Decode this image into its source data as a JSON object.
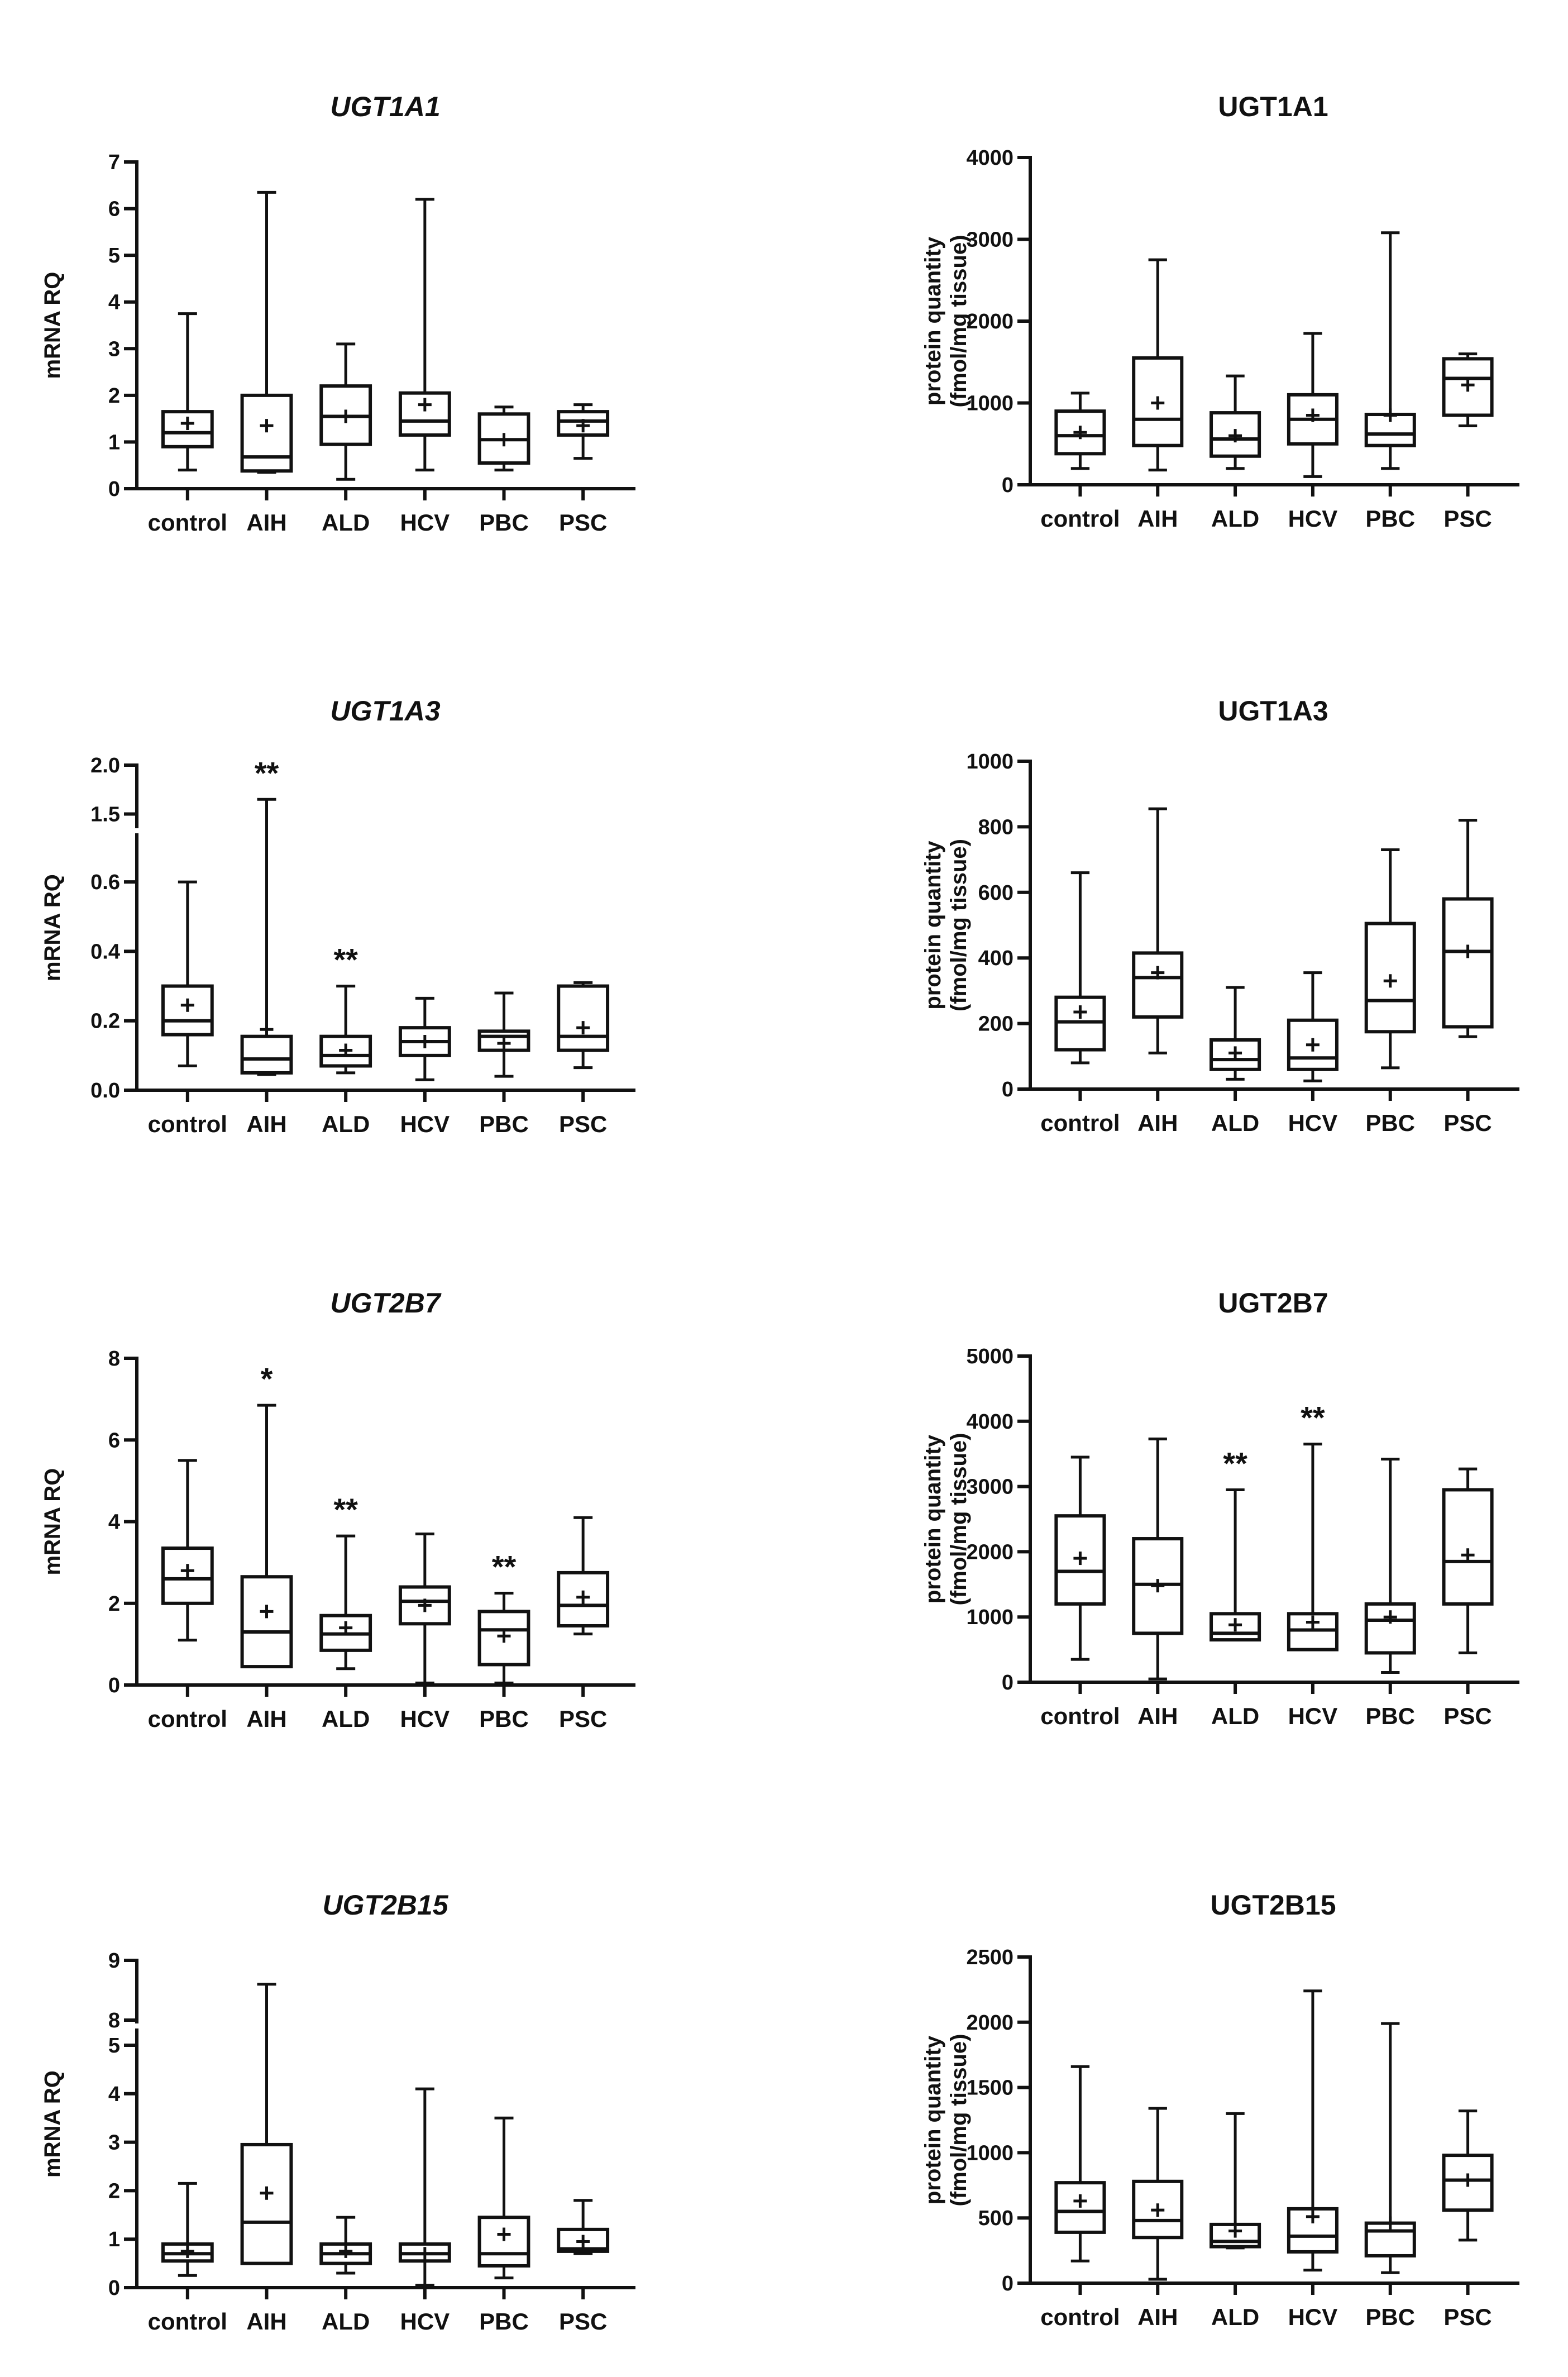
{
  "chart_data": [
    {
      "id": "mrna-ugt1a1",
      "type": "box",
      "title": "UGT1A1",
      "title_italic": true,
      "ylabel": [
        "mRNA RQ"
      ],
      "ylim": [
        0,
        7
      ],
      "yticks": [
        "0",
        "1",
        "2",
        "3",
        "4",
        "5",
        "6",
        "7"
      ],
      "categories": [
        "control",
        "AIH",
        "ALD",
        "HCV",
        "PBC",
        "PSC"
      ],
      "boxes": [
        {
          "min": 0.4,
          "q1": 0.9,
          "median": 1.2,
          "q3": 1.65,
          "max": 3.75,
          "mean": 1.4,
          "sig": ""
        },
        {
          "min": 0.35,
          "q1": 0.38,
          "median": 0.68,
          "q3": 2.0,
          "max": 6.35,
          "mean": 1.35,
          "sig": ""
        },
        {
          "min": 0.2,
          "q1": 0.95,
          "median": 1.55,
          "q3": 2.2,
          "max": 3.1,
          "mean": 1.55,
          "sig": ""
        },
        {
          "min": 0.4,
          "q1": 1.15,
          "median": 1.45,
          "q3": 2.05,
          "max": 6.2,
          "mean": 1.8,
          "sig": ""
        },
        {
          "min": 0.4,
          "q1": 0.55,
          "median": 1.05,
          "q3": 1.6,
          "max": 1.75,
          "mean": 1.05,
          "sig": ""
        },
        {
          "min": 0.65,
          "q1": 1.15,
          "median": 1.45,
          "q3": 1.65,
          "max": 1.8,
          "mean": 1.35,
          "sig": ""
        }
      ]
    },
    {
      "id": "protein-ugt1a1",
      "type": "box",
      "title": "UGT1A1",
      "title_italic": false,
      "ylabel": [
        "protein quantity",
        "(fmol/mg tissue)"
      ],
      "ylim": [
        0,
        4000
      ],
      "yticks": [
        "0",
        "1000",
        "2000",
        "3000",
        "4000"
      ],
      "categories": [
        "control",
        "AIH",
        "ALD",
        "HCV",
        "PBC",
        "PSC"
      ],
      "boxes": [
        {
          "min": 200,
          "q1": 380,
          "median": 600,
          "q3": 900,
          "max": 1120,
          "mean": 640,
          "sig": ""
        },
        {
          "min": 180,
          "q1": 480,
          "median": 800,
          "q3": 1550,
          "max": 2750,
          "mean": 1000,
          "sig": ""
        },
        {
          "min": 200,
          "q1": 350,
          "median": 560,
          "q3": 880,
          "max": 1330,
          "mean": 600,
          "sig": ""
        },
        {
          "min": 100,
          "q1": 500,
          "median": 800,
          "q3": 1100,
          "max": 1850,
          "mean": 850,
          "sig": ""
        },
        {
          "min": 200,
          "q1": 480,
          "median": 620,
          "q3": 860,
          "max": 3080,
          "mean": 850,
          "sig": ""
        },
        {
          "min": 720,
          "q1": 850,
          "median": 1300,
          "q3": 1540,
          "max": 1600,
          "mean": 1220,
          "sig": ""
        }
      ]
    },
    {
      "id": "mrna-ugt1a3",
      "type": "box",
      "title": "UGT1A3",
      "title_italic": true,
      "ylabel": [
        "mRNA RQ"
      ],
      "ylim": [
        0,
        2.0
      ],
      "axis_break": {
        "lower_max": 0.7,
        "upper_min": 1.4,
        "upper_max": 2.0
      },
      "yticks": [
        "0.0",
        "0.2",
        "0.4",
        "0.6",
        "1.5",
        "2.0"
      ],
      "categories": [
        "control",
        "AIH",
        "ALD",
        "HCV",
        "PBC",
        "PSC"
      ],
      "boxes": [
        {
          "min": 0.07,
          "q1": 0.16,
          "median": 0.2,
          "q3": 0.3,
          "max": 0.6,
          "mean": 0.245,
          "sig": ""
        },
        {
          "min": 0.045,
          "q1": 0.05,
          "median": 0.09,
          "q3": 0.155,
          "max": 1.65,
          "mean": 0.175,
          "sig": "**"
        },
        {
          "min": 0.05,
          "q1": 0.07,
          "median": 0.1,
          "q3": 0.155,
          "max": 0.3,
          "mean": 0.115,
          "sig": "**"
        },
        {
          "min": 0.03,
          "q1": 0.1,
          "median": 0.14,
          "q3": 0.18,
          "max": 0.265,
          "mean": 0.14,
          "sig": ""
        },
        {
          "min": 0.04,
          "q1": 0.115,
          "median": 0.155,
          "q3": 0.17,
          "max": 0.28,
          "mean": 0.135,
          "sig": ""
        },
        {
          "min": 0.065,
          "q1": 0.115,
          "median": 0.155,
          "q3": 0.3,
          "max": 0.31,
          "mean": 0.18,
          "sig": ""
        }
      ]
    },
    {
      "id": "protein-ugt1a3",
      "type": "box",
      "title": "UGT1A3",
      "title_italic": false,
      "ylabel": [
        "protein quantity",
        "(fmol/mg tissue)"
      ],
      "ylim": [
        0,
        1000
      ],
      "yticks": [
        "0",
        "200",
        "400",
        "600",
        "800",
        "1000"
      ],
      "categories": [
        "control",
        "AIH",
        "ALD",
        "HCV",
        "PBC",
        "PSC"
      ],
      "boxes": [
        {
          "min": 80,
          "q1": 120,
          "median": 205,
          "q3": 280,
          "max": 660,
          "mean": 235,
          "sig": ""
        },
        {
          "min": 110,
          "q1": 220,
          "median": 340,
          "q3": 415,
          "max": 855,
          "mean": 355,
          "sig": ""
        },
        {
          "min": 30,
          "q1": 60,
          "median": 90,
          "q3": 150,
          "max": 310,
          "mean": 110,
          "sig": ""
        },
        {
          "min": 25,
          "q1": 60,
          "median": 95,
          "q3": 210,
          "max": 355,
          "mean": 135,
          "sig": ""
        },
        {
          "min": 65,
          "q1": 175,
          "median": 270,
          "q3": 505,
          "max": 730,
          "mean": 330,
          "sig": ""
        },
        {
          "min": 160,
          "q1": 190,
          "median": 420,
          "q3": 580,
          "max": 820,
          "mean": 420,
          "sig": ""
        }
      ]
    },
    {
      "id": "mrna-ugt2b7",
      "type": "box",
      "title": "UGT2B7",
      "title_italic": true,
      "ylabel": [
        "mRNA RQ"
      ],
      "ylim": [
        0,
        8
      ],
      "yticks": [
        "0",
        "2",
        "4",
        "6",
        "8"
      ],
      "categories": [
        "control",
        "AIH",
        "ALD",
        "HCV",
        "PBC",
        "PSC"
      ],
      "boxes": [
        {
          "min": 1.1,
          "q1": 2.0,
          "median": 2.6,
          "q3": 3.35,
          "max": 5.5,
          "mean": 2.8,
          "sig": ""
        },
        {
          "min": 0.45,
          "q1": 0.45,
          "median": 1.3,
          "q3": 2.65,
          "max": 6.85,
          "mean": 1.8,
          "sig": "*"
        },
        {
          "min": 0.4,
          "q1": 0.85,
          "median": 1.25,
          "q3": 1.7,
          "max": 3.65,
          "mean": 1.4,
          "sig": "**"
        },
        {
          "min": 0.05,
          "q1": 1.5,
          "median": 2.05,
          "q3": 2.4,
          "max": 3.7,
          "mean": 1.95,
          "sig": ""
        },
        {
          "min": 0.05,
          "q1": 0.5,
          "median": 1.35,
          "q3": 1.8,
          "max": 2.25,
          "mean": 1.2,
          "sig": "**"
        },
        {
          "min": 1.25,
          "q1": 1.45,
          "median": 1.95,
          "q3": 2.75,
          "max": 4.1,
          "mean": 2.15,
          "sig": ""
        }
      ]
    },
    {
      "id": "protein-ugt2b7",
      "type": "box",
      "title": "UGT2B7",
      "title_italic": false,
      "ylabel": [
        "protein quantity",
        "(fmol/mg tissue)"
      ],
      "ylim": [
        0,
        5000
      ],
      "yticks": [
        "0",
        "1000",
        "2000",
        "3000",
        "4000",
        "5000"
      ],
      "categories": [
        "control",
        "AIH",
        "ALD",
        "HCV",
        "PBC",
        "PSC"
      ],
      "boxes": [
        {
          "min": 350,
          "q1": 1200,
          "median": 1700,
          "q3": 2550,
          "max": 3450,
          "mean": 1900,
          "sig": ""
        },
        {
          "min": 50,
          "q1": 750,
          "median": 1500,
          "q3": 2200,
          "max": 3730,
          "mean": 1480,
          "sig": ""
        },
        {
          "min": 650,
          "q1": 650,
          "median": 750,
          "q3": 1050,
          "max": 2950,
          "mean": 880,
          "sig": "**"
        },
        {
          "min": 500,
          "q1": 500,
          "median": 800,
          "q3": 1050,
          "max": 3650,
          "mean": 920,
          "sig": "**"
        },
        {
          "min": 150,
          "q1": 450,
          "median": 950,
          "q3": 1200,
          "max": 3420,
          "mean": 1000,
          "sig": ""
        },
        {
          "min": 450,
          "q1": 1200,
          "median": 1850,
          "q3": 2950,
          "max": 3270,
          "mean": 1950,
          "sig": ""
        }
      ]
    },
    {
      "id": "mrna-ugt2b15",
      "type": "box",
      "title": "UGT2B15",
      "title_italic": true,
      "ylabel": [
        "mRNA RQ"
      ],
      "ylim": [
        0,
        9
      ],
      "axis_break": {
        "lower_max": 5,
        "upper_min": 8,
        "upper_max": 9
      },
      "yticks": [
        "0",
        "1",
        "2",
        "3",
        "4",
        "5",
        "8",
        "9"
      ],
      "categories": [
        "control",
        "AIH",
        "ALD",
        "HCV",
        "PBC",
        "PSC"
      ],
      "boxes": [
        {
          "min": 0.25,
          "q1": 0.55,
          "median": 0.7,
          "q3": 0.9,
          "max": 2.15,
          "mean": 0.75,
          "sig": ""
        },
        {
          "min": 0.5,
          "q1": 0.5,
          "median": 1.35,
          "q3": 2.95,
          "max": 8.6,
          "mean": 1.95,
          "sig": ""
        },
        {
          "min": 0.3,
          "q1": 0.5,
          "median": 0.7,
          "q3": 0.9,
          "max": 1.45,
          "mean": 0.75,
          "sig": ""
        },
        {
          "min": 0.05,
          "q1": 0.55,
          "median": 0.7,
          "q3": 0.9,
          "max": 4.1,
          "mean": 0.7,
          "sig": ""
        },
        {
          "min": 0.2,
          "q1": 0.45,
          "median": 0.7,
          "q3": 1.45,
          "max": 3.5,
          "mean": 1.1,
          "sig": ""
        },
        {
          "min": 0.7,
          "q1": 0.75,
          "median": 0.8,
          "q3": 1.2,
          "max": 1.8,
          "mean": 0.95,
          "sig": ""
        }
      ]
    },
    {
      "id": "protein-ugt2b15",
      "type": "box",
      "title": "UGT2B15",
      "title_italic": false,
      "ylabel": [
        "protein quantity",
        "(fmol/mg tissue)"
      ],
      "ylim": [
        0,
        2500
      ],
      "yticks": [
        "0",
        "500",
        "1000",
        "1500",
        "2000",
        "2500"
      ],
      "categories": [
        "control",
        "AIH",
        "ALD",
        "HCV",
        "PBC",
        "PSC"
      ],
      "boxes": [
        {
          "min": 170,
          "q1": 390,
          "median": 550,
          "q3": 770,
          "max": 1660,
          "mean": 630,
          "sig": ""
        },
        {
          "min": 30,
          "q1": 350,
          "median": 480,
          "q3": 780,
          "max": 1340,
          "mean": 560,
          "sig": ""
        },
        {
          "min": 270,
          "q1": 280,
          "median": 320,
          "q3": 450,
          "max": 1300,
          "mean": 400,
          "sig": ""
        },
        {
          "min": 100,
          "q1": 240,
          "median": 360,
          "q3": 570,
          "max": 2240,
          "mean": 510,
          "sig": ""
        },
        {
          "min": 80,
          "q1": 210,
          "median": 400,
          "q3": 460,
          "max": 1990,
          "mean": 460,
          "sig": ""
        },
        {
          "min": 330,
          "q1": 560,
          "median": 790,
          "q3": 980,
          "max": 1320,
          "mean": 790,
          "sig": ""
        }
      ]
    }
  ]
}
